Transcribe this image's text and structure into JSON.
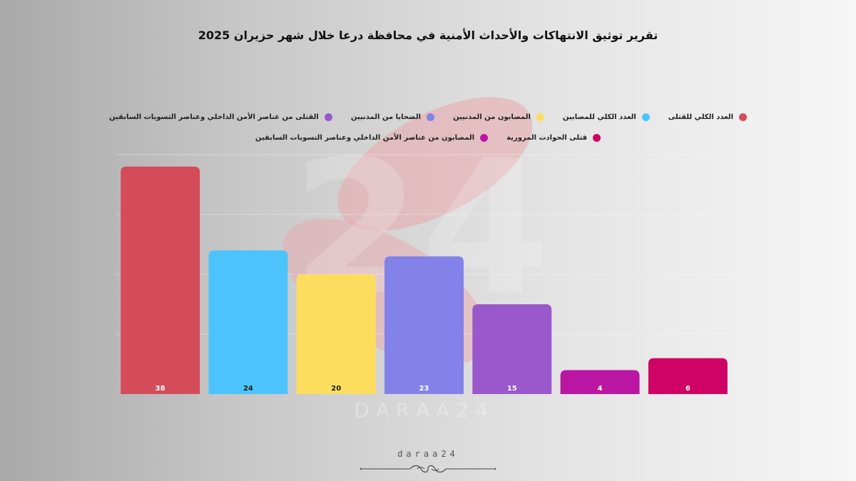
{
  "title": "تقرير توثيق الانتهاكات والأحداث الأمنية في محافظة درعا خلال شهر حزيران 2025",
  "watermark": {
    "text": "D A R A A  2 4",
    "number": "24"
  },
  "footer": {
    "brand": "daraa24"
  },
  "chart_data": {
    "type": "bar",
    "title": "تقرير توثيق الانتهاكات والأحداث الأمنية في محافظة درعا خلال شهر حزيران 2025",
    "categories": [
      "العدد الكلي للقتلى",
      "العدد الكلي للمصابين",
      "المصابون من المدنيين",
      "الضحايا من المدنيين",
      "القتلى من عناصر الأمن الداخلي وعناصر التسويات السابقين",
      "المصابون من عناصر الأمن الداخلي وعناصر التسويات السابقين",
      "قتلى الحوادث المرورية"
    ],
    "values": [
      38,
      24,
      20,
      23,
      15,
      4,
      6
    ],
    "colors": [
      "#d44c5a",
      "#4cc4fb",
      "#fddd5d",
      "#8282e8",
      "#9a58cc",
      "#bb16a3",
      "#cf0365"
    ],
    "ylim": [
      0,
      40
    ],
    "grid": true,
    "legend_position": "top",
    "legend_rows": [
      [
        0,
        1,
        2,
        3,
        4
      ],
      [
        6,
        5
      ]
    ]
  }
}
